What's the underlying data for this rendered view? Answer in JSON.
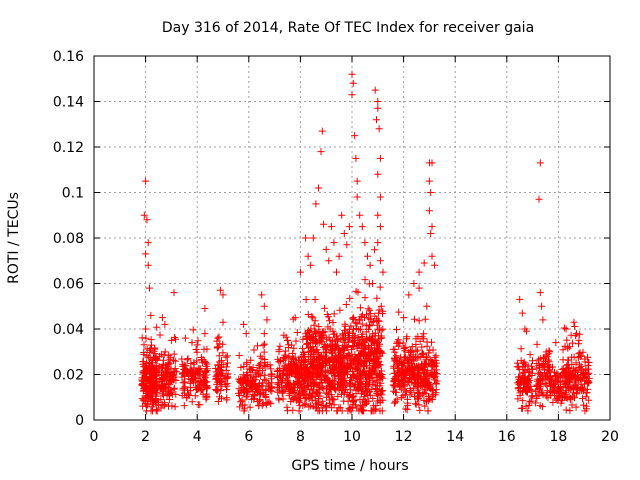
{
  "chart_data": {
    "type": "scatter",
    "title": "Day 316 of 2014, Rate Of TEC Index for receiver gaia",
    "xlabel": "GPS time / hours",
    "ylabel": "ROTI / TECUs",
    "xlim": [
      0,
      20
    ],
    "ylim": [
      0,
      0.16
    ],
    "xticks": [
      0,
      2,
      4,
      6,
      8,
      10,
      12,
      14,
      16,
      18,
      20
    ],
    "yticks": [
      0,
      0.02,
      0.04,
      0.06,
      0.08,
      0.1,
      0.12,
      0.14,
      0.16
    ],
    "xtick_labels": [
      "0",
      "2",
      "4",
      "6",
      "8",
      "10",
      "12",
      "14",
      "16",
      "18",
      "20"
    ],
    "ytick_labels": [
      "0",
      "0.02",
      "0.04",
      "0.06",
      "0.08",
      "0.1",
      "0.12",
      "0.14",
      "0.16"
    ],
    "grid": true,
    "marker": "+",
    "marker_color": "#ff0000",
    "series": [
      {
        "name": "gaia",
        "clusters": [
          {
            "x": [
              1.85,
              2.45
            ],
            "y_median": 0.017,
            "spread": 0.007,
            "n": 220
          },
          {
            "x": [
              2.5,
              3.2
            ],
            "y_median": 0.018,
            "spread": 0.006,
            "n": 110
          },
          {
            "x": [
              3.4,
              4.4
            ],
            "y_median": 0.018,
            "spread": 0.006,
            "n": 140
          },
          {
            "x": [
              4.7,
              5.2
            ],
            "y_median": 0.02,
            "spread": 0.006,
            "n": 70
          },
          {
            "x": [
              5.6,
              6.1
            ],
            "y_median": 0.016,
            "spread": 0.006,
            "n": 70
          },
          {
            "x": [
              6.1,
              6.9
            ],
            "y_median": 0.015,
            "spread": 0.006,
            "n": 100
          },
          {
            "x": [
              7.1,
              8.2
            ],
            "y_median": 0.018,
            "spread": 0.007,
            "n": 230
          },
          {
            "x": [
              8.2,
              9.6
            ],
            "y_median": 0.022,
            "spread": 0.01,
            "n": 420
          },
          {
            "x": [
              9.6,
              11.2
            ],
            "y_median": 0.024,
            "spread": 0.012,
            "n": 500
          },
          {
            "x": [
              11.6,
              12.4
            ],
            "y_median": 0.02,
            "spread": 0.008,
            "n": 170
          },
          {
            "x": [
              12.4,
              13.3
            ],
            "y_median": 0.019,
            "spread": 0.008,
            "n": 180
          },
          {
            "x": [
              16.4,
              17.0
            ],
            "y_median": 0.017,
            "spread": 0.006,
            "n": 90
          },
          {
            "x": [
              17.1,
              17.6
            ],
            "y_median": 0.018,
            "spread": 0.006,
            "n": 70
          },
          {
            "x": [
              17.6,
              18.2
            ],
            "y_median": 0.016,
            "spread": 0.005,
            "n": 80
          },
          {
            "x": [
              18.2,
              19.2
            ],
            "y_median": 0.018,
            "spread": 0.007,
            "n": 170
          }
        ],
        "points": [
          [
            2.0,
            0.105
          ],
          [
            1.95,
            0.09
          ],
          [
            2.05,
            0.088
          ],
          [
            2.1,
            0.078
          ],
          [
            2.0,
            0.073
          ],
          [
            2.1,
            0.068
          ],
          [
            2.15,
            0.058
          ],
          [
            2.2,
            0.046
          ],
          [
            2.0,
            0.04
          ],
          [
            2.65,
            0.045
          ],
          [
            2.75,
            0.042
          ],
          [
            3.1,
            0.056
          ],
          [
            3.0,
            0.035
          ],
          [
            3.8,
            0.034
          ],
          [
            4.0,
            0.033
          ],
          [
            4.3,
            0.049
          ],
          [
            4.3,
            0.038
          ],
          [
            4.9,
            0.057
          ],
          [
            5.0,
            0.055
          ],
          [
            5.0,
            0.043
          ],
          [
            4.8,
            0.036
          ],
          [
            5.8,
            0.042
          ],
          [
            5.9,
            0.038
          ],
          [
            6.5,
            0.055
          ],
          [
            6.6,
            0.05
          ],
          [
            6.7,
            0.044
          ],
          [
            6.6,
            0.038
          ],
          [
            7.5,
            0.035
          ],
          [
            7.8,
            0.045
          ],
          [
            8.0,
            0.065
          ],
          [
            8.2,
            0.08
          ],
          [
            8.3,
            0.072
          ],
          [
            8.4,
            0.068
          ],
          [
            8.5,
            0.08
          ],
          [
            8.6,
            0.095
          ],
          [
            8.7,
            0.102
          ],
          [
            8.8,
            0.118
          ],
          [
            8.85,
            0.127
          ],
          [
            8.9,
            0.086
          ],
          [
            9.0,
            0.075
          ],
          [
            9.1,
            0.07
          ],
          [
            9.2,
            0.085
          ],
          [
            9.3,
            0.078
          ],
          [
            9.4,
            0.065
          ],
          [
            9.5,
            0.072
          ],
          [
            9.6,
            0.09
          ],
          [
            9.7,
            0.082
          ],
          [
            9.8,
            0.077
          ],
          [
            9.9,
            0.085
          ],
          [
            10.0,
            0.152
          ],
          [
            10.05,
            0.148
          ],
          [
            10.0,
            0.143
          ],
          [
            10.1,
            0.125
          ],
          [
            10.15,
            0.115
          ],
          [
            10.2,
            0.105
          ],
          [
            10.2,
            0.098
          ],
          [
            10.3,
            0.09
          ],
          [
            10.4,
            0.085
          ],
          [
            10.5,
            0.078
          ],
          [
            10.6,
            0.072
          ],
          [
            10.7,
            0.068
          ],
          [
            10.9,
            0.145
          ],
          [
            11.0,
            0.14
          ],
          [
            11.0,
            0.137
          ],
          [
            10.95,
            0.132
          ],
          [
            11.05,
            0.128
          ],
          [
            11.1,
            0.115
          ],
          [
            11.0,
            0.108
          ],
          [
            11.1,
            0.098
          ],
          [
            11.0,
            0.09
          ],
          [
            11.1,
            0.085
          ],
          [
            11.0,
            0.078
          ],
          [
            11.1,
            0.07
          ],
          [
            11.2,
            0.065
          ],
          [
            10.8,
            0.06
          ],
          [
            12.0,
            0.045
          ],
          [
            12.2,
            0.055
          ],
          [
            12.4,
            0.06
          ],
          [
            12.6,
            0.065
          ],
          [
            12.8,
            0.069
          ],
          [
            12.6,
            0.058
          ],
          [
            12.9,
            0.05
          ],
          [
            13.0,
            0.113
          ],
          [
            13.1,
            0.113
          ],
          [
            13.0,
            0.105
          ],
          [
            13.05,
            0.1
          ],
          [
            13.0,
            0.092
          ],
          [
            13.1,
            0.085
          ],
          [
            13.05,
            0.082
          ],
          [
            13.1,
            0.072
          ],
          [
            13.2,
            0.068
          ],
          [
            16.5,
            0.053
          ],
          [
            16.6,
            0.047
          ],
          [
            16.7,
            0.04
          ],
          [
            17.3,
            0.113
          ],
          [
            17.25,
            0.097
          ],
          [
            17.3,
            0.056
          ],
          [
            17.35,
            0.05
          ],
          [
            17.4,
            0.044
          ],
          [
            17.9,
            0.034
          ],
          [
            18.3,
            0.04
          ],
          [
            18.6,
            0.043
          ],
          [
            18.7,
            0.038
          ],
          [
            18.8,
            0.035
          ]
        ]
      }
    ]
  }
}
